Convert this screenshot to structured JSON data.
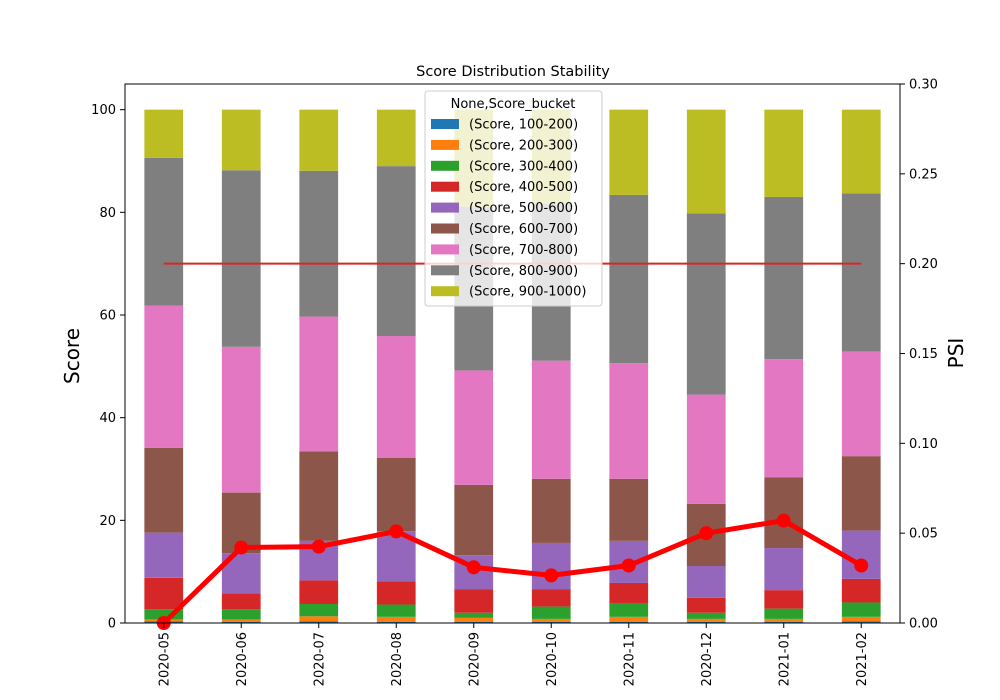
{
  "chart_data": {
    "type": "bar",
    "stacked": true,
    "title": "Score Distribution Stability",
    "ylabel": "Score",
    "y2label": "PSI",
    "categories": [
      "2020-05",
      "2020-06",
      "2020-07",
      "2020-08",
      "2020-09",
      "2020-10",
      "2020-11",
      "2020-12",
      "2021-01",
      "2021-02"
    ],
    "ylim": [
      0,
      105
    ],
    "y2lim": [
      0,
      0.3
    ],
    "yticks": [
      "0",
      "20",
      "40",
      "60",
      "80",
      "100"
    ],
    "y2ticks": [
      "0.00",
      "0.05",
      "0.10",
      "0.15",
      "0.20",
      "0.25",
      "0.30"
    ],
    "legend": {
      "title": "None,Score_bucket",
      "placement": "upper-center"
    },
    "series": [
      {
        "name": "(Score, 100-200)",
        "color": "#1f77b4",
        "values": [
          0.3,
          0.2,
          0.3,
          0.2,
          0.2,
          0.2,
          0.2,
          0.2,
          0.2,
          0.3
        ]
      },
      {
        "name": "(Score, 200-300)",
        "color": "#ff7f0e",
        "values": [
          0.4,
          0.5,
          1.0,
          1.0,
          0.8,
          0.6,
          1.0,
          0.6,
          0.6,
          0.9
        ]
      },
      {
        "name": "(Score, 300-400)",
        "color": "#2ca02c",
        "values": [
          2.0,
          2.0,
          2.4,
          2.4,
          1.0,
          2.4,
          2.7,
          1.2,
          2.0,
          2.8
        ]
      },
      {
        "name": "(Score, 400-500)",
        "color": "#d62728",
        "values": [
          6.1,
          3.1,
          4.6,
          4.5,
          4.6,
          3.4,
          3.9,
          2.9,
          3.6,
          4.6
        ]
      },
      {
        "name": "(Score, 500-600)",
        "color": "#9467bd",
        "values": [
          8.8,
          7.8,
          7.7,
          9.8,
          6.6,
          9.0,
          8.2,
          6.2,
          8.2,
          9.4
        ]
      },
      {
        "name": "(Score, 600-700)",
        "color": "#8c564b",
        "values": [
          16.5,
          11.8,
          17.4,
          14.3,
          13.7,
          12.5,
          12.1,
          12.1,
          13.8,
          14.5
        ]
      },
      {
        "name": "(Score, 700-800)",
        "color": "#e377c2",
        "values": [
          27.7,
          28.4,
          26.3,
          23.7,
          22.3,
          23.0,
          22.5,
          21.3,
          23.0,
          20.4
        ]
      },
      {
        "name": "(Score, 800-900)",
        "color": "#7f7f7f",
        "values": [
          28.8,
          34.4,
          28.4,
          33.1,
          31.9,
          30.6,
          32.8,
          35.3,
          31.6,
          30.8
        ]
      },
      {
        "name": "(Score, 900-1000)",
        "color": "#bcbd22",
        "values": [
          9.4,
          11.8,
          11.9,
          11.0,
          18.9,
          18.3,
          16.6,
          20.2,
          17.0,
          16.3
        ]
      }
    ],
    "psi": {
      "color": "#ff0000",
      "values": [
        0.0,
        0.042,
        0.0425,
        0.051,
        0.031,
        0.0265,
        0.032,
        0.05,
        0.057,
        0.032
      ]
    },
    "threshold": {
      "color": "#d62728",
      "value": 0.2
    },
    "grid": false
  }
}
